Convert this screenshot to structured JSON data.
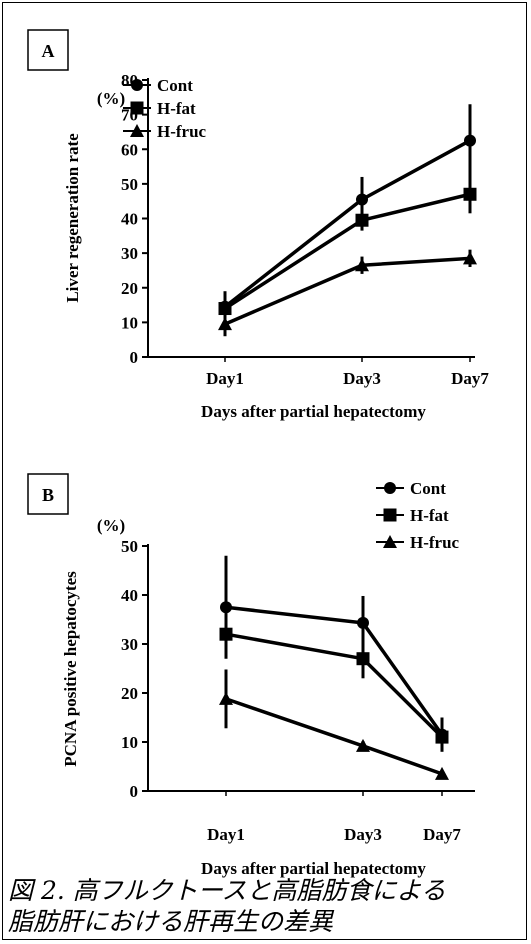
{
  "chart_data": [
    {
      "type": "line",
      "panel_label": "A",
      "unit_label": "(%)",
      "ylabel": "Liver regeneration rate",
      "xlabel": "Days after partial hepatectomy",
      "categories": [
        "Day1",
        "Day3",
        "Day7"
      ],
      "ylim": [
        0,
        80
      ],
      "yticks": [
        "0",
        "10",
        "20",
        "30",
        "40",
        "50",
        "60",
        "70",
        "80"
      ],
      "legend_position": "top-left",
      "series": [
        {
          "name": "Cont",
          "marker": "circle",
          "values": [
            14.5,
            45.5,
            62.5
          ],
          "errors": [
            4.5,
            6.5,
            10.5
          ]
        },
        {
          "name": "H-fat",
          "marker": "square",
          "values": [
            14.0,
            39.5,
            47.0
          ],
          "errors": [
            3.5,
            3.0,
            5.5
          ]
        },
        {
          "name": "H-fruc",
          "marker": "triangle",
          "values": [
            9.5,
            26.5,
            28.5
          ],
          "errors": [
            3.5,
            2.5,
            2.5
          ]
        }
      ]
    },
    {
      "type": "line",
      "panel_label": "B",
      "unit_label": "(%)",
      "ylabel": "PCNA positive hepatocytes",
      "xlabel": "Days after partial hepatectomy",
      "categories": [
        "Day1",
        "Day3",
        "Day7"
      ],
      "ylim": [
        0,
        50
      ],
      "yticks": [
        "0",
        "10",
        "20",
        "30",
        "40",
        "50"
      ],
      "legend_position": "top-right",
      "series": [
        {
          "name": "Cont",
          "marker": "circle",
          "values": [
            37.5,
            34.3,
            11.5
          ],
          "errors": [
            10.5,
            5.5,
            3.5
          ]
        },
        {
          "name": "H-fat",
          "marker": "square",
          "values": [
            32.0,
            27.0,
            11.0
          ],
          "errors": [
            4.0,
            4.0,
            2.0
          ]
        },
        {
          "name": "H-fruc",
          "marker": "triangle",
          "values": [
            18.8,
            9.2,
            3.5
          ],
          "errors": [
            6.0,
            1.0,
            0.5
          ]
        }
      ]
    }
  ],
  "caption": {
    "line1": "図 2. 高フルクトースと高脂肪食による",
    "line2": "脂肪肝における肝再生の差異"
  }
}
